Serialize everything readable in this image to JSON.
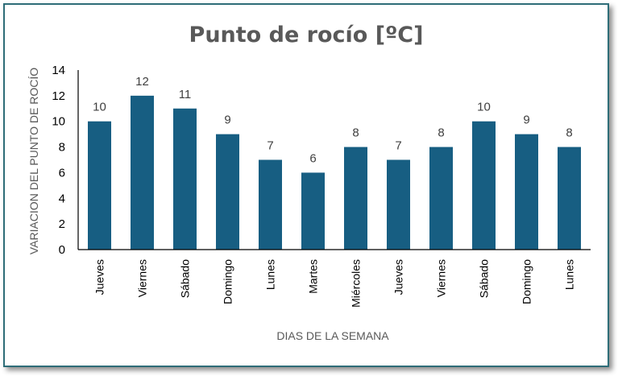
{
  "chart_data": {
    "type": "bar",
    "title": "Punto de rocío [ºC]",
    "xlabel": "DIAS DE LA SEMANA",
    "ylabel": "VARIACION DEL PUNTO DE ROCÍO",
    "categories": [
      "Jueves",
      "Viernes",
      "Sábado",
      "Domingo",
      "Lunes",
      "Martes",
      "Miércoles",
      "Jueves",
      "Viernes",
      "Sábado",
      "Domingo",
      "Lunes"
    ],
    "values": [
      10,
      12,
      11,
      9,
      7,
      6,
      8,
      7,
      8,
      10,
      9,
      8
    ],
    "ylim": [
      0,
      14
    ],
    "yticks": [
      0,
      2,
      4,
      6,
      8,
      10,
      12,
      14
    ],
    "grid": false,
    "bar_color": "#175e82",
    "frame_color": "#2e6d78",
    "data_labels": true
  }
}
